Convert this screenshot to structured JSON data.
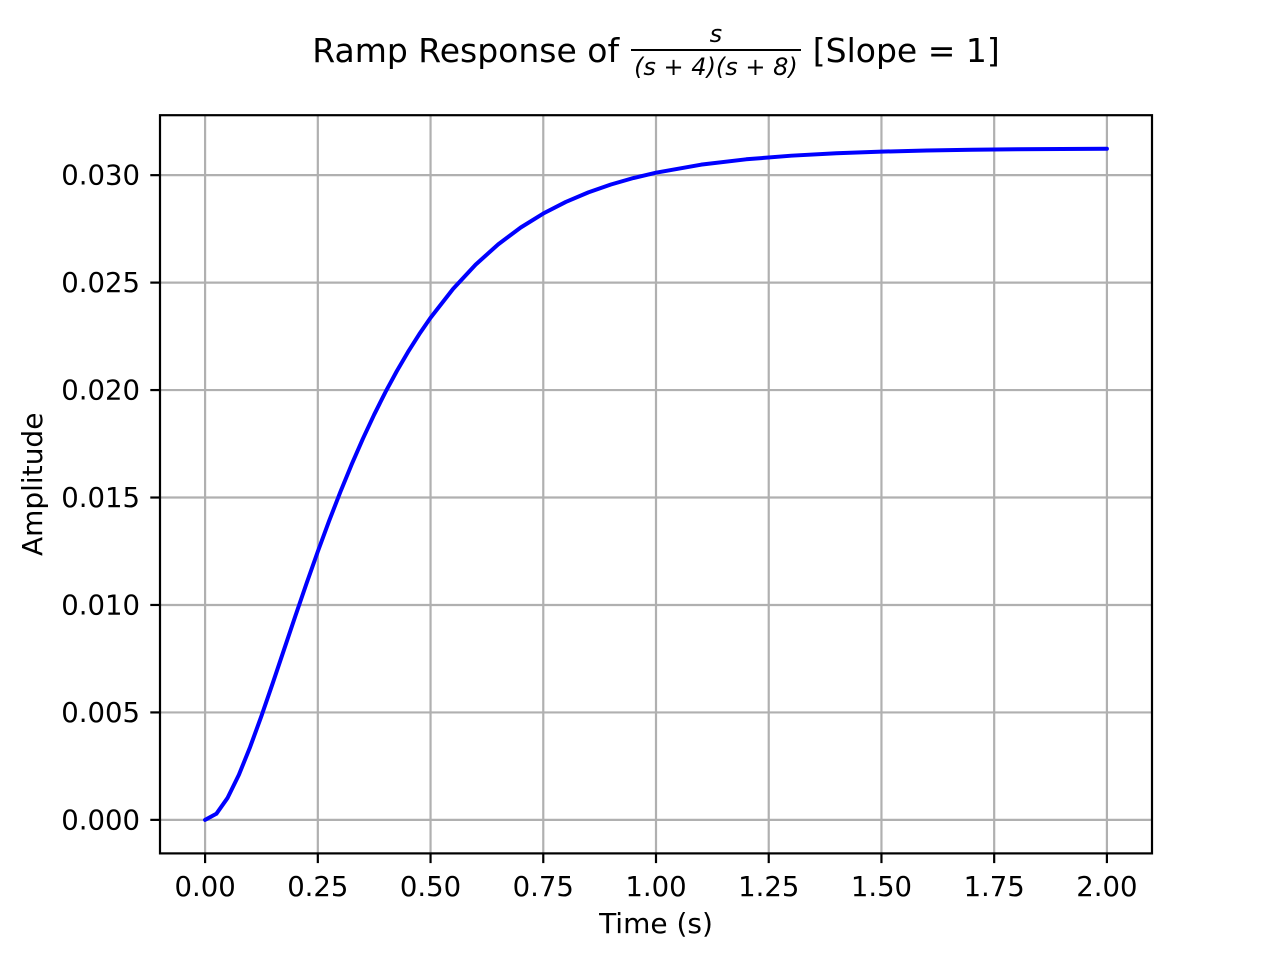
{
  "figure": {
    "background_color": "#ffffff",
    "title": {
      "prefix": "Ramp Response of",
      "fraction_numerator": "s",
      "fraction_denominator": "(s + 4)(s + 8)",
      "suffix": "[Slope = 1]"
    }
  },
  "chart_data": {
    "type": "line",
    "title": "Ramp Response of s/((s+4)(s+8)) [Slope = 1]",
    "xlabel": "Time (s)",
    "ylabel": "Amplitude",
    "xlim": [
      -0.1,
      2.1
    ],
    "ylim": [
      -0.00156,
      0.03279
    ],
    "xticks": [
      0,
      0.25,
      0.5,
      0.75,
      1.0,
      1.25,
      1.5,
      1.75,
      2.0
    ],
    "xtick_labels": [
      "0.00",
      "0.25",
      "0.50",
      "0.75",
      "1.00",
      "1.25",
      "1.50",
      "1.75",
      "2.00"
    ],
    "yticks": [
      0,
      0.005,
      0.01,
      0.015,
      0.02,
      0.025,
      0.03
    ],
    "ytick_labels": [
      "0.000",
      "0.005",
      "0.010",
      "0.015",
      "0.020",
      "0.025",
      "0.030"
    ],
    "grid": true,
    "grid_color": "#b0b0b0",
    "axis_color": "#000000",
    "legend_position": "none",
    "series": [
      {
        "name": "ramp response",
        "color": "#0000ff",
        "line_width": 4,
        "x": [
          0,
          0.025,
          0.05,
          0.075,
          0.1,
          0.125,
          0.15,
          0.175,
          0.2,
          0.225,
          0.25,
          0.275,
          0.3,
          0.325,
          0.35,
          0.375,
          0.4,
          0.425,
          0.45,
          0.475,
          0.5,
          0.55,
          0.6,
          0.65,
          0.7,
          0.75,
          0.8,
          0.85,
          0.9,
          0.95,
          1.0,
          1.1,
          1.2,
          1.3,
          1.4,
          1.5,
          1.6,
          1.7,
          1.8,
          1.9,
          2.0
        ],
        "y": [
          0,
          0.000283,
          0.001027,
          0.002099,
          0.003397,
          0.004838,
          0.006361,
          0.007919,
          0.009476,
          0.011005,
          0.012487,
          0.013908,
          0.01526,
          0.016538,
          0.017738,
          0.01886,
          0.019905,
          0.020875,
          0.021773,
          0.022601,
          0.023364,
          0.024709,
          0.025837,
          0.02678,
          0.027565,
          0.028215,
          0.028754,
          0.029199,
          0.029565,
          0.029868,
          0.030115,
          0.030488,
          0.030738,
          0.030906,
          0.031019,
          0.031095,
          0.031146,
          0.031181,
          0.031203,
          0.031219,
          0.031229
        ]
      }
    ]
  }
}
